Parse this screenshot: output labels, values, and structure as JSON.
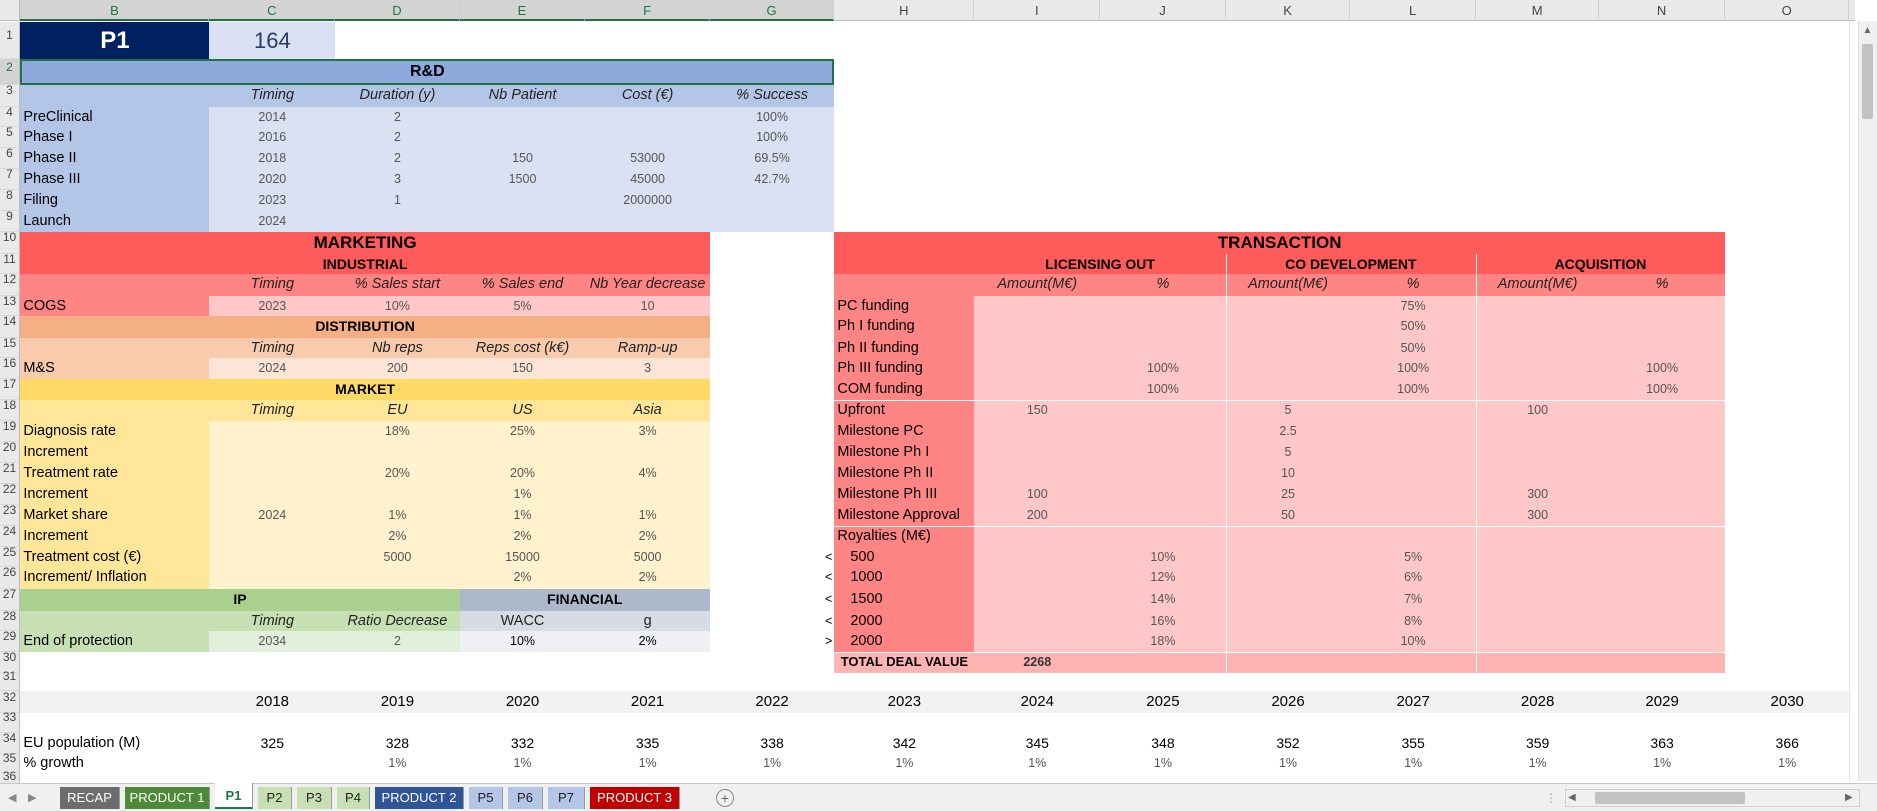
{
  "columns": [
    "B",
    "C",
    "D",
    "E",
    "F",
    "G",
    "H",
    "I",
    "J",
    "K",
    "L",
    "M",
    "N",
    "O"
  ],
  "rows": [
    "1",
    "2",
    "3",
    "4",
    "5",
    "6",
    "7",
    "8",
    "9",
    "10",
    "11",
    "12",
    "13",
    "14",
    "15",
    "16",
    "17",
    "18",
    "19",
    "20",
    "21",
    "22",
    "23",
    "24",
    "25",
    "26",
    "27",
    "28",
    "29",
    "30",
    "31",
    "32",
    "33",
    "34",
    "35",
    "36"
  ],
  "title": {
    "name": "P1",
    "value": "164"
  },
  "rnd": {
    "title": "R&D",
    "headers": [
      "Timing",
      "Duration (y)",
      "Nb Patient",
      "Cost (€)",
      "% Success"
    ],
    "rows": [
      {
        "label": "PreClinical",
        "cells": [
          "2014",
          "2",
          "",
          "",
          "100%"
        ]
      },
      {
        "label": "Phase I",
        "cells": [
          "2016",
          "2",
          "",
          "",
          "100%"
        ]
      },
      {
        "label": "Phase II",
        "cells": [
          "2018",
          "2",
          "150",
          "53000",
          "69.5%"
        ]
      },
      {
        "label": "Phase III",
        "cells": [
          "2020",
          "3",
          "1500",
          "45000",
          "42.7%"
        ]
      },
      {
        "label": "Filing",
        "cells": [
          "2023",
          "1",
          "",
          "2000000",
          ""
        ]
      },
      {
        "label": "Launch",
        "cells": [
          "2024",
          "",
          "",
          "",
          ""
        ]
      }
    ]
  },
  "marketing": {
    "title": "MARKETING",
    "industrial": {
      "title": "INDUSTRIAL",
      "headers": [
        "Timing",
        "% Sales start",
        "% Sales end",
        "Nb Year decrease"
      ],
      "row": {
        "label": "COGS",
        "cells": [
          "2023",
          "10%",
          "5%",
          "10"
        ]
      }
    },
    "distribution": {
      "title": "DISTRIBUTION",
      "headers": [
        "Timing",
        "Nb reps",
        "Reps cost (k€)",
        "Ramp-up"
      ],
      "row": {
        "label": "M&S",
        "cells": [
          "2024",
          "200",
          "150",
          "3"
        ]
      }
    },
    "market": {
      "title": "MARKET",
      "headers": [
        "Timing",
        "EU",
        "US",
        "Asia"
      ],
      "rows": [
        {
          "label": "Diagnosis rate",
          "cells": [
            "",
            "18%",
            "25%",
            "3%"
          ]
        },
        {
          "label": "Increment",
          "cells": [
            "",
            "",
            "",
            ""
          ]
        },
        {
          "label": "Treatment rate",
          "cells": [
            "",
            "20%",
            "20%",
            "4%"
          ]
        },
        {
          "label": "Increment",
          "cells": [
            "",
            "",
            "1%",
            ""
          ]
        },
        {
          "label": "Market share",
          "cells": [
            "2024",
            "1%",
            "1%",
            "1%"
          ]
        },
        {
          "label": "Increment",
          "cells": [
            "",
            "2%",
            "2%",
            "2%"
          ]
        },
        {
          "label": "Treatment cost (€)",
          "cells": [
            "",
            "5000",
            "15000",
            "5000"
          ]
        },
        {
          "label": "Increment/ Inflation",
          "cells": [
            "",
            "",
            "2%",
            "2%"
          ]
        }
      ]
    }
  },
  "ip": {
    "title": "IP",
    "headers": [
      "Timing",
      "Ratio Decrease"
    ],
    "row": {
      "label": "End of protection",
      "cells": [
        "2034",
        "2"
      ]
    }
  },
  "financial": {
    "title": "FINANCIAL",
    "headers": [
      "WACC",
      "g"
    ],
    "cells": [
      "10%",
      "2%"
    ]
  },
  "transaction": {
    "title": "TRANSACTION",
    "groups": [
      "LICENSING OUT",
      "CO DEVELOPMENT",
      "ACQUISITION"
    ],
    "subheaders": [
      "Amount(M€)",
      "%",
      "Amount(M€)",
      "%",
      "Amount(M€)",
      "%"
    ],
    "rows": [
      {
        "label": "PC funding",
        "cells": [
          "",
          "",
          "",
          "75%",
          "",
          ""
        ]
      },
      {
        "label": "Ph I funding",
        "cells": [
          "",
          "",
          "",
          "50%",
          "",
          ""
        ]
      },
      {
        "label": "Ph II funding",
        "cells": [
          "",
          "",
          "",
          "50%",
          "",
          ""
        ]
      },
      {
        "label": "Ph III funding",
        "cells": [
          "",
          "100%",
          "",
          "100%",
          "",
          "100%"
        ]
      },
      {
        "label": "COM funding",
        "cells": [
          "",
          "100%",
          "",
          "100%",
          "",
          "100%"
        ]
      },
      {
        "label": "Upfront",
        "cells": [
          "150",
          "",
          "5",
          "",
          "100",
          ""
        ]
      },
      {
        "label": "Milestone PC",
        "cells": [
          "",
          "",
          "2.5",
          "",
          "",
          ""
        ]
      },
      {
        "label": "Milestone Ph I",
        "cells": [
          "",
          "",
          "5",
          "",
          "",
          ""
        ]
      },
      {
        "label": "Milestone Ph II",
        "cells": [
          "",
          "",
          "10",
          "",
          "",
          ""
        ]
      },
      {
        "label": "Milestone Ph III",
        "cells": [
          "100",
          "",
          "25",
          "",
          "300",
          ""
        ]
      },
      {
        "label": "Milestone Approval",
        "cells": [
          "200",
          "",
          "50",
          "",
          "300",
          ""
        ]
      },
      {
        "label": "Royalties (M€)",
        "cells": [
          "",
          "",
          "",
          "",
          "",
          ""
        ]
      }
    ],
    "royalties": [
      {
        "op": "<",
        "threshold": "500",
        "cells": [
          "",
          "10%",
          "",
          "5%",
          "",
          ""
        ]
      },
      {
        "op": "<",
        "threshold": "1000",
        "cells": [
          "",
          "12%",
          "",
          "6%",
          "",
          ""
        ]
      },
      {
        "op": "<",
        "threshold": "1500",
        "cells": [
          "",
          "14%",
          "",
          "7%",
          "",
          ""
        ]
      },
      {
        "op": "<",
        "threshold": "2000",
        "cells": [
          "",
          "16%",
          "",
          "8%",
          "",
          ""
        ]
      },
      {
        "op": ">",
        "threshold": "2000",
        "cells": [
          "",
          "18%",
          "",
          "10%",
          "",
          ""
        ]
      }
    ],
    "total": {
      "label": "TOTAL DEAL VALUE",
      "value": "2268"
    }
  },
  "years": [
    "2018",
    "2019",
    "2020",
    "2021",
    "2022",
    "2023",
    "2024",
    "2025",
    "2026",
    "2027",
    "2028",
    "2029",
    "2030"
  ],
  "projection": [
    {
      "label": "EU population (M)",
      "cells": [
        "325",
        "328",
        "332",
        "335",
        "338",
        "342",
        "345",
        "348",
        "352",
        "355",
        "359",
        "363",
        "366"
      ]
    },
    {
      "label": "% growth",
      "cells": [
        "",
        "1%",
        "1%",
        "1%",
        "1%",
        "1%",
        "1%",
        "1%",
        "1%",
        "1%",
        "1%",
        "1%",
        "1%"
      ]
    }
  ],
  "tabs": [
    {
      "label": "RECAP",
      "color": "#6d6d6d"
    },
    {
      "label": "PRODUCT 1",
      "color": "#4f8a3a"
    },
    {
      "label": "P1",
      "color": "#ffffff"
    },
    {
      "label": "P2",
      "color": "#c6e0b4"
    },
    {
      "label": "P3",
      "color": "#c6e0b4"
    },
    {
      "label": "P4",
      "color": "#c6e0b4"
    },
    {
      "label": "PRODUCT 2",
      "color": "#2f5597"
    },
    {
      "label": "P5",
      "color": "#b4c6e7"
    },
    {
      "label": "P6",
      "color": "#b4c6e7"
    },
    {
      "label": "P7",
      "color": "#b4c6e7"
    },
    {
      "label": "PRODUCT 3",
      "color": "#c00000"
    }
  ],
  "icons": {
    "add_sheet": "plus-circle-icon",
    "scroll_left": "caret-left-icon",
    "scroll_right": "caret-right-icon",
    "scroll_up": "caret-up-icon"
  }
}
